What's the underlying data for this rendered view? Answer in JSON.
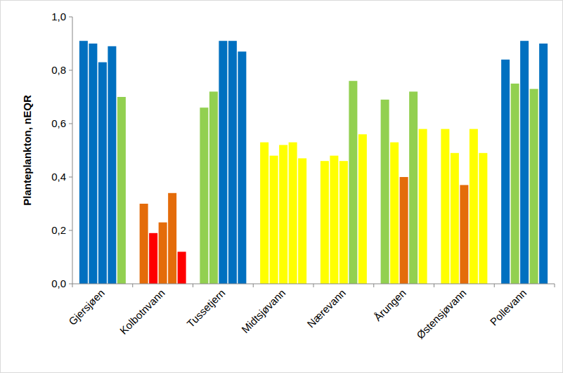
{
  "chart_data": {
    "type": "bar",
    "y_label": "Planteplankton, nEQR",
    "categories": [
      "Gjersjøen",
      "Kolbotnvann",
      "Tussetjern",
      "Midtsjøvann",
      "Nærevann",
      "Årungen",
      "Østensjøvann",
      "Pollevann"
    ],
    "series": [
      {
        "values": [
          0.91,
          0.3,
          0.66,
          0.53,
          0.46,
          0.69,
          0.58,
          0.84
        ],
        "colors": [
          "#0070c0",
          "#e46c0a",
          "#92d050",
          "#ffff00",
          "#ffff00",
          "#92d050",
          "#ffff00",
          "#0070c0"
        ]
      },
      {
        "values": [
          0.9,
          0.19,
          0.72,
          0.48,
          0.48,
          0.53,
          0.49,
          0.75
        ],
        "colors": [
          "#0070c0",
          "#ff0000",
          "#92d050",
          "#ffff00",
          "#ffff00",
          "#ffff00",
          "#ffff00",
          "#92d050"
        ]
      },
      {
        "values": [
          0.83,
          0.23,
          0.91,
          0.52,
          0.46,
          0.4,
          0.37,
          0.91
        ],
        "colors": [
          "#0070c0",
          "#e46c0a",
          "#0070c0",
          "#ffff00",
          "#ffff00",
          "#e46c0a",
          "#e46c0a",
          "#0070c0"
        ]
      },
      {
        "values": [
          0.89,
          0.34,
          0.91,
          0.53,
          0.76,
          0.72,
          0.58,
          0.73
        ],
        "colors": [
          "#0070c0",
          "#e46c0a",
          "#0070c0",
          "#ffff00",
          "#92d050",
          "#92d050",
          "#ffff00",
          "#92d050"
        ]
      },
      {
        "values": [
          0.7,
          0.12,
          0.87,
          0.47,
          0.56,
          0.58,
          0.49,
          0.9
        ],
        "colors": [
          "#92d050",
          "#ff0000",
          "#0070c0",
          "#ffff00",
          "#ffff00",
          "#ffff00",
          "#ffff00",
          "#0070c0"
        ]
      }
    ],
    "ylim": [
      0,
      1
    ],
    "yticks": [
      {
        "value": 0,
        "label": "0,0"
      },
      {
        "value": 0.2,
        "label": "0,2"
      },
      {
        "value": 0.4,
        "label": "0,4"
      },
      {
        "value": 0.6,
        "label": "0,6"
      },
      {
        "value": 0.8,
        "label": "0,8"
      },
      {
        "value": 1,
        "label": "1,0"
      }
    ],
    "grid": false
  }
}
